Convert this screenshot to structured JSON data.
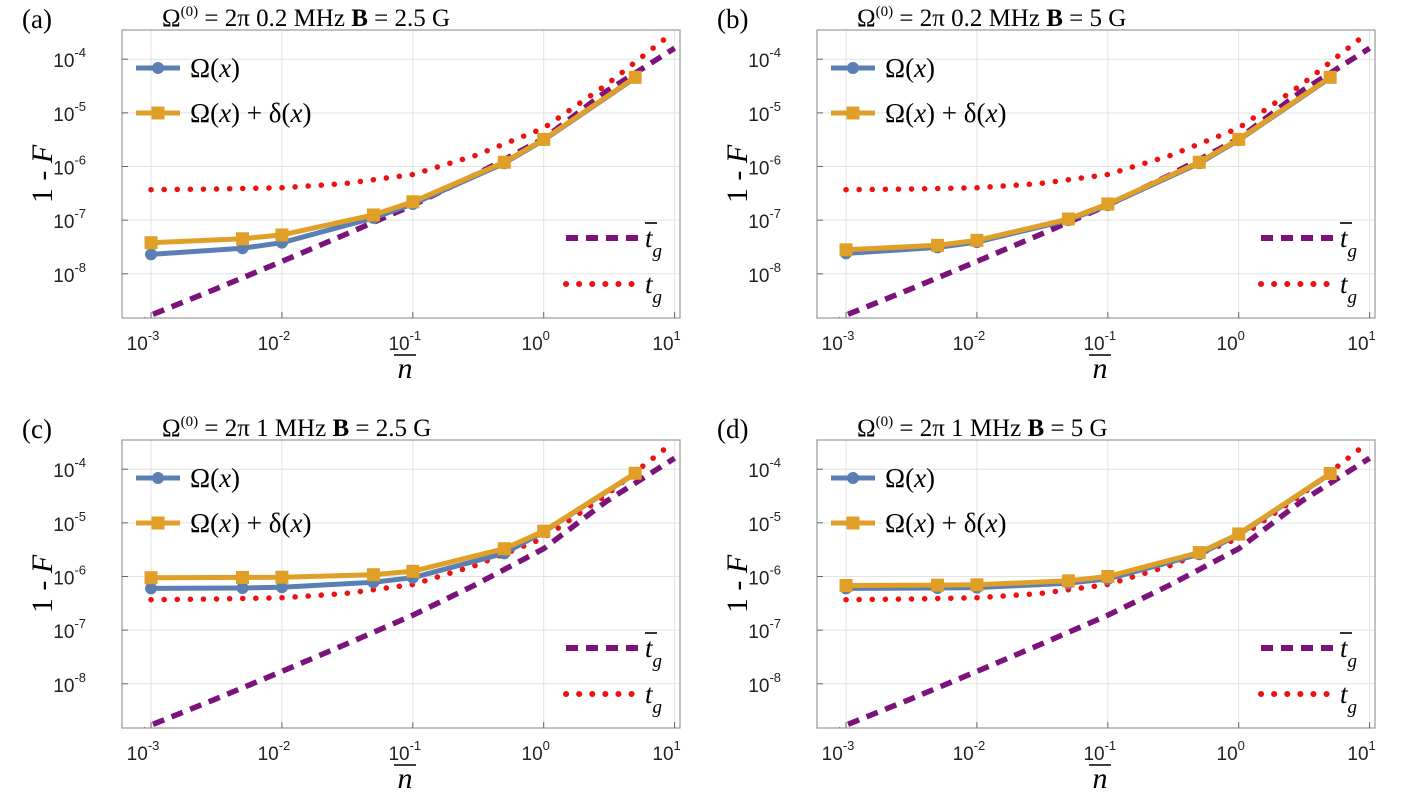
{
  "chart_data": [
    {
      "type": "line",
      "panel_label": "(a)",
      "title": {
        "omega_symbol": "Ω",
        "omega_sup": "(0)",
        "omega_value": "= 2π 0.2 MHz",
        "b_symbol": "B",
        "b_value": "= 2.5 G"
      },
      "xlabel": "n",
      "ylabel": "1 - F",
      "xscale": "log",
      "yscale": "log",
      "xlim": [
        0.0006,
        11
      ],
      "ylim": [
        1.5e-09,
        0.00035
      ],
      "xticks": [
        0.001,
        0.01,
        0.1,
        1,
        10
      ],
      "xtick_labels": [
        {
          "base": "10",
          "exp": "-3"
        },
        {
          "base": "10",
          "exp": "-2"
        },
        {
          "base": "10",
          "exp": "-1"
        },
        {
          "base": "10",
          "exp": "0"
        },
        {
          "base": "10",
          "exp": "1"
        }
      ],
      "yticks": [
        1e-08,
        1e-07,
        1e-06,
        1e-05,
        0.0001
      ],
      "ytick_labels": [
        {
          "base": "10",
          "exp": "-8"
        },
        {
          "base": "10",
          "exp": "-7"
        },
        {
          "base": "10",
          "exp": "-6"
        },
        {
          "base": "10",
          "exp": "-5"
        },
        {
          "base": "10",
          "exp": "-4"
        }
      ],
      "grid": true,
      "legend_top": [
        {
          "name": "Ω(x)",
          "text": "Ω(x)"
        },
        {
          "name": "Ω(x) + δ(x)",
          "text": "Ω(x) + δ(x)"
        }
      ],
      "legend_bottom": [
        {
          "name": "t̄_g",
          "base": "t",
          "sub": "g",
          "bar": true
        },
        {
          "name": "t_g",
          "base": "t",
          "sub": "g",
          "bar": false
        }
      ],
      "series": [
        {
          "name": "Ω(x)",
          "color": "#5b7fb3",
          "marker": "circle",
          "x": [
            0.001,
            0.005,
            0.01,
            0.05,
            0.1,
            0.5,
            1,
            5
          ],
          "y": [
            2.3e-08,
            3e-08,
            3.8e-08,
            1.1e-07,
            2e-07,
            1.15e-06,
            3.1e-06,
            4.5e-05
          ]
        },
        {
          "name": "Ω(x) + δ(x)",
          "color": "#e0a028",
          "marker": "square",
          "x": [
            0.001,
            0.005,
            0.01,
            0.05,
            0.1,
            0.5,
            1,
            5
          ],
          "y": [
            3.8e-08,
            4.5e-08,
            5.3e-08,
            1.25e-07,
            2.2e-07,
            1.2e-06,
            3.2e-06,
            4.6e-05
          ]
        },
        {
          "name": "t̄_g",
          "color": "#7b137b",
          "style": "dashed",
          "x": [
            0.0006,
            0.001,
            0.003,
            0.01,
            0.03,
            0.1,
            0.3,
            1,
            3,
            10
          ],
          "y": [
            6e-10,
            1.7e-09,
            5e-09,
            1.7e-08,
            5.3e-08,
            1.9e-07,
            7e-07,
            3.3e-06,
            2.5e-05,
            0.00016
          ]
        },
        {
          "name": "t_g",
          "color": "#ee1111",
          "style": "dotted",
          "x": [
            0.001,
            0.003,
            0.01,
            0.03,
            0.1,
            0.3,
            1,
            3,
            9
          ],
          "y": [
            3.7e-07,
            3.8e-07,
            4e-07,
            4.8e-07,
            7.1e-07,
            1.6e-06,
            5.2e-06,
            3.3e-05,
            0.00027
          ]
        }
      ]
    },
    {
      "type": "line",
      "panel_label": "(b)",
      "title": {
        "omega_symbol": "Ω",
        "omega_sup": "(0)",
        "omega_value": "= 2π 0.2 MHz",
        "b_symbol": "B",
        "b_value": "= 5 G"
      },
      "xlabel": "n",
      "ylabel": "1 - F",
      "xscale": "log",
      "yscale": "log",
      "xlim": [
        0.0006,
        11
      ],
      "ylim": [
        1.5e-09,
        0.00035
      ],
      "xticks": [
        0.001,
        0.01,
        0.1,
        1,
        10
      ],
      "xtick_labels": [
        {
          "base": "10",
          "exp": "-3"
        },
        {
          "base": "10",
          "exp": "-2"
        },
        {
          "base": "10",
          "exp": "-1"
        },
        {
          "base": "10",
          "exp": "0"
        },
        {
          "base": "10",
          "exp": "1"
        }
      ],
      "yticks": [
        1e-08,
        1e-07,
        1e-06,
        1e-05,
        0.0001
      ],
      "ytick_labels": [
        {
          "base": "10",
          "exp": "-8"
        },
        {
          "base": "10",
          "exp": "-7"
        },
        {
          "base": "10",
          "exp": "-6"
        },
        {
          "base": "10",
          "exp": "-5"
        },
        {
          "base": "10",
          "exp": "-4"
        }
      ],
      "grid": true,
      "legend_top": [
        {
          "name": "Ω(x)",
          "text": "Ω(x)"
        },
        {
          "name": "Ω(x) + δ(x)",
          "text": "Ω(x) + δ(x)"
        }
      ],
      "legend_bottom": [
        {
          "name": "t̄_g",
          "base": "t",
          "sub": "g",
          "bar": true
        },
        {
          "name": "t_g",
          "base": "t",
          "sub": "g",
          "bar": false
        }
      ],
      "series": [
        {
          "name": "Ω(x)",
          "color": "#5b7fb3",
          "marker": "circle",
          "x": [
            0.001,
            0.005,
            0.01,
            0.05,
            0.1,
            0.5,
            1,
            5
          ],
          "y": [
            2.4e-08,
            3.1e-08,
            3.9e-08,
            1e-07,
            1.9e-07,
            1.15e-06,
            3.1e-06,
            4.5e-05
          ]
        },
        {
          "name": "Ω(x) + δ(x)",
          "color": "#e0a028",
          "marker": "square",
          "x": [
            0.001,
            0.005,
            0.01,
            0.05,
            0.1,
            0.5,
            1,
            5
          ],
          "y": [
            2.8e-08,
            3.4e-08,
            4.2e-08,
            1.05e-07,
            2e-07,
            1.2e-06,
            3.2e-06,
            4.6e-05
          ]
        },
        {
          "name": "t̄_g",
          "color": "#7b137b",
          "style": "dashed",
          "x": [
            0.0006,
            0.001,
            0.003,
            0.01,
            0.03,
            0.1,
            0.3,
            1,
            3,
            10
          ],
          "y": [
            6e-10,
            1.7e-09,
            5e-09,
            1.7e-08,
            5.3e-08,
            1.9e-07,
            7e-07,
            3.3e-06,
            2.5e-05,
            0.00016
          ]
        },
        {
          "name": "t_g",
          "color": "#ee1111",
          "style": "dotted",
          "x": [
            0.001,
            0.003,
            0.01,
            0.03,
            0.1,
            0.3,
            1,
            3,
            9
          ],
          "y": [
            3.7e-07,
            3.8e-07,
            4e-07,
            4.8e-07,
            7.1e-07,
            1.6e-06,
            5.2e-06,
            3.3e-05,
            0.00027
          ]
        }
      ]
    },
    {
      "type": "line",
      "panel_label": "(c)",
      "title": {
        "omega_symbol": "Ω",
        "omega_sup": "(0)",
        "omega_value": "= 2π 1 MHz",
        "b_symbol": "B",
        "b_value": "= 2.5 G"
      },
      "xlabel": "n",
      "ylabel": "1 - F",
      "xscale": "log",
      "yscale": "log",
      "xlim": [
        0.0006,
        11
      ],
      "ylim": [
        1.5e-09,
        0.00035
      ],
      "xticks": [
        0.001,
        0.01,
        0.1,
        1,
        10
      ],
      "xtick_labels": [
        {
          "base": "10",
          "exp": "-3"
        },
        {
          "base": "10",
          "exp": "-2"
        },
        {
          "base": "10",
          "exp": "-1"
        },
        {
          "base": "10",
          "exp": "0"
        },
        {
          "base": "10",
          "exp": "1"
        }
      ],
      "yticks": [
        1e-08,
        1e-07,
        1e-06,
        1e-05,
        0.0001
      ],
      "ytick_labels": [
        {
          "base": "10",
          "exp": "-8"
        },
        {
          "base": "10",
          "exp": "-7"
        },
        {
          "base": "10",
          "exp": "-6"
        },
        {
          "base": "10",
          "exp": "-5"
        },
        {
          "base": "10",
          "exp": "-4"
        }
      ],
      "grid": true,
      "legend_top": [
        {
          "name": "Ω(x)",
          "text": "Ω(x)"
        },
        {
          "name": "Ω(x) + δ(x)",
          "text": "Ω(x) + δ(x)"
        }
      ],
      "legend_bottom": [
        {
          "name": "t̄_g",
          "base": "t",
          "sub": "g",
          "bar": true
        },
        {
          "name": "t_g",
          "base": "t",
          "sub": "g",
          "bar": false
        }
      ],
      "series": [
        {
          "name": "Ω(x)",
          "color": "#5b7fb3",
          "marker": "circle",
          "x": [
            0.001,
            0.005,
            0.01,
            0.05,
            0.1,
            0.5,
            1,
            5
          ],
          "y": [
            6e-07,
            6.1e-07,
            6.3e-07,
            7.8e-07,
            9.5e-07,
            2.7e-06,
            6.8e-06,
            8.3e-05
          ]
        },
        {
          "name": "Ω(x) + δ(x)",
          "color": "#e0a028",
          "marker": "square",
          "x": [
            0.001,
            0.005,
            0.01,
            0.05,
            0.1,
            0.5,
            1,
            5
          ],
          "y": [
            9.5e-07,
            9.6e-07,
            9.7e-07,
            1.08e-06,
            1.25e-06,
            3.3e-06,
            7e-06,
            8.4e-05
          ]
        },
        {
          "name": "t̄_g",
          "color": "#7b137b",
          "style": "dashed",
          "x": [
            0.0006,
            0.001,
            0.003,
            0.01,
            0.03,
            0.1,
            0.3,
            1,
            3,
            10
          ],
          "y": [
            6e-10,
            1.7e-09,
            5e-09,
            1.7e-08,
            5.3e-08,
            1.9e-07,
            7e-07,
            3.3e-06,
            2.5e-05,
            0.00016
          ]
        },
        {
          "name": "t_g",
          "color": "#ee1111",
          "style": "dotted",
          "x": [
            0.001,
            0.003,
            0.01,
            0.03,
            0.1,
            0.3,
            1,
            3,
            9
          ],
          "y": [
            3.7e-07,
            3.8e-07,
            4e-07,
            4.8e-07,
            7.1e-07,
            1.6e-06,
            5.2e-06,
            3.3e-05,
            0.00027
          ]
        }
      ]
    },
    {
      "type": "line",
      "panel_label": "(d)",
      "title": {
        "omega_symbol": "Ω",
        "omega_sup": "(0)",
        "omega_value": "= 2π 1 MHz",
        "b_symbol": "B",
        "b_value": "= 5 G"
      },
      "xlabel": "n",
      "ylabel": "1 - F",
      "xscale": "log",
      "yscale": "log",
      "xlim": [
        0.0006,
        11
      ],
      "ylim": [
        1.5e-09,
        0.00035
      ],
      "xticks": [
        0.001,
        0.01,
        0.1,
        1,
        10
      ],
      "xtick_labels": [
        {
          "base": "10",
          "exp": "-3"
        },
        {
          "base": "10",
          "exp": "-2"
        },
        {
          "base": "10",
          "exp": "-1"
        },
        {
          "base": "10",
          "exp": "0"
        },
        {
          "base": "10",
          "exp": "1"
        }
      ],
      "yticks": [
        1e-08,
        1e-07,
        1e-06,
        1e-05,
        0.0001
      ],
      "ytick_labels": [
        {
          "base": "10",
          "exp": "-8"
        },
        {
          "base": "10",
          "exp": "-7"
        },
        {
          "base": "10",
          "exp": "-6"
        },
        {
          "base": "10",
          "exp": "-5"
        },
        {
          "base": "10",
          "exp": "-4"
        }
      ],
      "grid": true,
      "legend_top": [
        {
          "name": "Ω(x)",
          "text": "Ω(x)"
        },
        {
          "name": "Ω(x) + δ(x)",
          "text": "Ω(x) + δ(x)"
        }
      ],
      "legend_bottom": [
        {
          "name": "t̄_g",
          "base": "t",
          "sub": "g",
          "bar": true
        },
        {
          "name": "t_g",
          "base": "t",
          "sub": "g",
          "bar": false
        }
      ],
      "series": [
        {
          "name": "Ω(x)",
          "color": "#5b7fb3",
          "marker": "circle",
          "x": [
            0.001,
            0.005,
            0.01,
            0.05,
            0.1,
            0.5,
            1,
            5
          ],
          "y": [
            6e-07,
            6.1e-07,
            6.2e-07,
            7.5e-07,
            9e-07,
            2.6e-06,
            6e-06,
            8.2e-05
          ]
        },
        {
          "name": "Ω(x) + δ(x)",
          "color": "#e0a028",
          "marker": "square",
          "x": [
            0.001,
            0.005,
            0.01,
            0.05,
            0.1,
            0.5,
            1,
            5
          ],
          "y": [
            6.8e-07,
            6.9e-07,
            7e-07,
            8.3e-07,
            1e-06,
            2.8e-06,
            6.2e-06,
            8.3e-05
          ]
        },
        {
          "name": "t̄_g",
          "color": "#7b137b",
          "style": "dashed",
          "x": [
            0.0006,
            0.001,
            0.003,
            0.01,
            0.03,
            0.1,
            0.3,
            1,
            3,
            10
          ],
          "y": [
            6e-10,
            1.7e-09,
            5e-09,
            1.7e-08,
            5.3e-08,
            1.9e-07,
            7e-07,
            3.3e-06,
            2.5e-05,
            0.00016
          ]
        },
        {
          "name": "t_g",
          "color": "#ee1111",
          "style": "dotted",
          "x": [
            0.001,
            0.003,
            0.01,
            0.03,
            0.1,
            0.3,
            1,
            3,
            9
          ],
          "y": [
            3.7e-07,
            3.8e-07,
            4e-07,
            4.8e-07,
            7.1e-07,
            1.6e-06,
            5.2e-06,
            3.3e-05,
            0.00027
          ]
        }
      ]
    }
  ]
}
